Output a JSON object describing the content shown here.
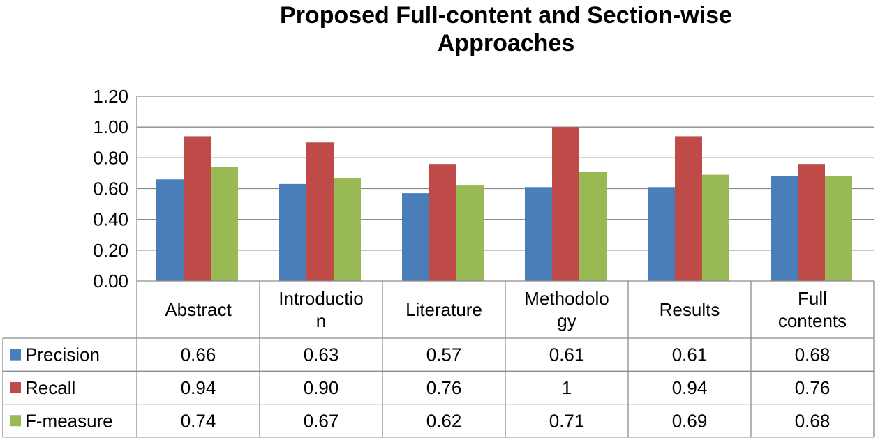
{
  "chart_data": {
    "type": "bar",
    "title": "Proposed Full-content and Section-wise Approaches",
    "title_lines": [
      "Proposed Full-content and Section-wise",
      "Approaches"
    ],
    "categories": [
      "Abstract",
      "Introduction",
      "Literature",
      "Methodology",
      "Results",
      "Full contents"
    ],
    "category_label_lines": [
      [
        "Abstract"
      ],
      [
        "Introductio",
        "n"
      ],
      [
        "Literature"
      ],
      [
        "Methodolo",
        "gy"
      ],
      [
        "Results"
      ],
      [
        "Full",
        "contents"
      ]
    ],
    "series": [
      {
        "name": "Precision",
        "color": "#4a7ebb",
        "values": [
          0.66,
          0.63,
          0.57,
          0.61,
          0.61,
          0.68
        ],
        "labels": [
          "0.66",
          "0.63",
          "0.57",
          "0.61",
          "0.61",
          "0.68"
        ]
      },
      {
        "name": "Recall",
        "color": "#be4b48",
        "values": [
          0.94,
          0.9,
          0.76,
          1.0,
          0.94,
          0.76
        ],
        "labels": [
          "0.94",
          "0.90",
          "0.76",
          "1",
          "0.94",
          "0.76"
        ]
      },
      {
        "name": "F-measure",
        "color": "#98b954",
        "values": [
          0.74,
          0.67,
          0.62,
          0.71,
          0.69,
          0.68
        ],
        "labels": [
          "0.74",
          "0.67",
          "0.62",
          "0.71",
          "0.69",
          "0.68"
        ]
      }
    ],
    "ylim": [
      0,
      1.2
    ],
    "yticks": [
      "0.00",
      "0.20",
      "0.40",
      "0.60",
      "0.80",
      "1.00",
      "1.20"
    ],
    "grid": true,
    "legend": "data-table-left",
    "data_table": true
  }
}
